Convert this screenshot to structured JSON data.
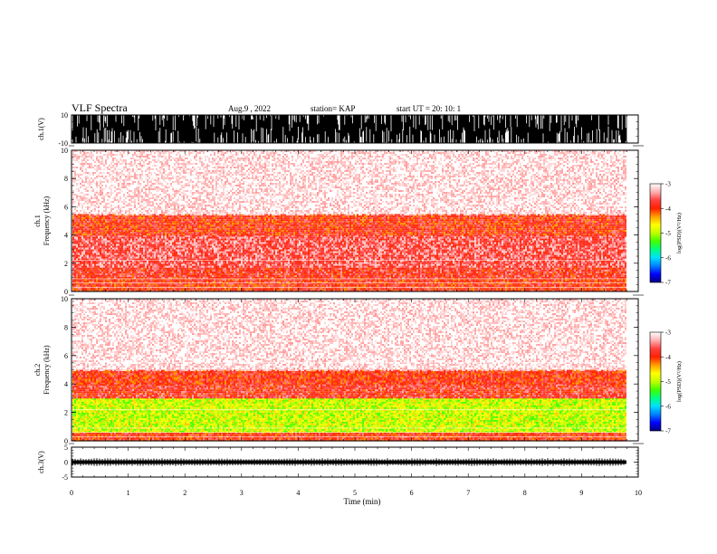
{
  "header": {
    "title": "VLF Spectra",
    "date": "Aug.9  , 2022",
    "station": "station= KAP",
    "start_ut": "start  UT  =   20: 10: 1"
  },
  "colors": {
    "colorbar": [
      "#000080",
      "#0000ff",
      "#0080ff",
      "#00e0ff",
      "#00ff80",
      "#40ff00",
      "#c0ff00",
      "#ffff00",
      "#ffa000",
      "#ff2000",
      "#ff4040",
      "#ffb0b0",
      "#ffffff"
    ]
  },
  "chart_data": [
    {
      "type": "line",
      "panel": "ch1-waveform",
      "ylabel": "ch.1(V)",
      "ylim": [
        -10,
        10
      ],
      "yticks": [
        "10",
        "-10"
      ],
      "xlim": [
        0,
        10
      ],
      "description_values": "dense saturated waveform spanning approximately -10 to 10 V through ~9.8 min"
    },
    {
      "type": "heatmap",
      "panel": "ch1-spectrogram",
      "ylabel": "ch.1\nFrequency (kHz)",
      "ylabel_lines": [
        "ch.1",
        "Frequency  (kHz)"
      ],
      "ylim": [
        0,
        10
      ],
      "yticks": [
        "0",
        "2",
        "4",
        "6",
        "8",
        "10"
      ],
      "xlim": [
        0,
        10
      ],
      "colorbar": {
        "label": "log(PSD)(V²/Hz)",
        "range": [
          -7,
          -3
        ],
        "ticks": [
          "-3",
          "-4",
          "-5",
          "-6",
          "-7"
        ]
      },
      "bands_khz": [
        {
          "from": 0,
          "to": 1.0,
          "level": -3.9
        },
        {
          "from": 1.0,
          "to": 1.8,
          "level": -3.8
        },
        {
          "from": 1.8,
          "to": 4.0,
          "level": -3.6
        },
        {
          "from": 4.0,
          "to": 5.5,
          "level": -3.9
        },
        {
          "from": 5.5,
          "to": 10,
          "level": -3.2
        }
      ]
    },
    {
      "type": "heatmap",
      "panel": "ch2-spectrogram",
      "ylabel_lines": [
        "ch.2",
        "Frequency  (kHz)"
      ],
      "ylim": [
        0,
        10
      ],
      "yticks": [
        "0",
        "2",
        "4",
        "6",
        "8",
        "10"
      ],
      "xlim": [
        0,
        10
      ],
      "colorbar": {
        "label": "log(PSD)(V²/Hz)",
        "range": [
          -7,
          -3
        ],
        "ticks": [
          "-3",
          "-4",
          "-5",
          "-6",
          "-7"
        ]
      },
      "bands_khz": [
        {
          "from": 0,
          "to": 0.6,
          "level": -3.9
        },
        {
          "from": 0.6,
          "to": 3.0,
          "level": -4.9
        },
        {
          "from": 3.0,
          "to": 4.0,
          "level": -3.8
        },
        {
          "from": 4.0,
          "to": 5.0,
          "level": -3.9
        },
        {
          "from": 5.0,
          "to": 10,
          "level": -3.2
        }
      ]
    },
    {
      "type": "line",
      "panel": "ch3-waveform",
      "ylabel": "ch.3(V)",
      "ylim": [
        -5,
        5
      ],
      "yticks": [
        "5",
        "0",
        "-5"
      ],
      "xlim": [
        0,
        10
      ],
      "description_values": "flat dense signal around 0 V"
    }
  ],
  "xaxis": {
    "label": "Time  (min)",
    "ticks": [
      "0",
      "1",
      "2",
      "3",
      "4",
      "5",
      "6",
      "7",
      "8",
      "9",
      "10"
    ]
  }
}
